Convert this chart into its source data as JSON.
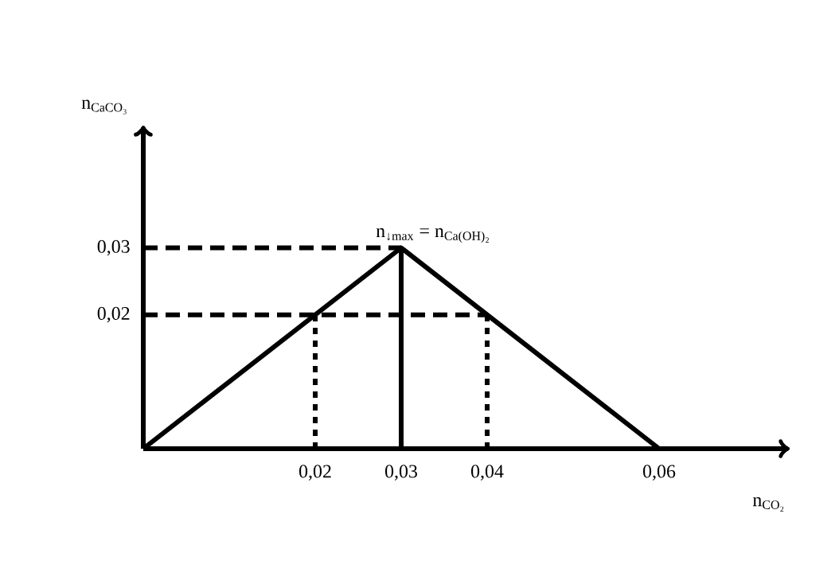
{
  "chart_data": {
    "type": "line",
    "xlabel": "n$_{CO₂}$",
    "ylabel": "n$_{CaCO₃}$",
    "x": [
      0,
      0.03,
      0.06
    ],
    "series": [
      {
        "color": "#000000",
        "line_style": "solid",
        "values": [
          0,
          0.03,
          0
        ]
      },
      {
        "color": "#000000",
        "line_style": "dashed",
        "x": [
          0,
          0.03
        ],
        "values": [
          0.03,
          0.03
        ]
      },
      {
        "color": "#000000",
        "line_style": "dashed",
        "x": [
          0,
          0.04
        ],
        "values": [
          0.02,
          0.02
        ]
      },
      {
        "color": "#000000",
        "line_style": "solid",
        "x": [
          0.03,
          0.03
        ],
        "values": [
          0,
          0.03
        ]
      },
      {
        "color": "#000000",
        "line_style": "dotted",
        "x": [
          0.02,
          0.02
        ],
        "values": [
          0,
          0.02
        ]
      },
      {
        "color": "#000000",
        "line_style": "dotted",
        "x": [
          0.04,
          0.04
        ],
        "values": [
          0,
          0.02
        ]
      }
    ],
    "xlim": [
      0,
      0.075
    ],
    "ylim": [
      0,
      0.048
    ],
    "xticks": [
      {
        "value": 0.02,
        "label": "0,02"
      },
      {
        "value": 0.03,
        "label": "0,03"
      },
      {
        "value": 0.04,
        "label": "0,04"
      },
      {
        "value": 0.06,
        "label": "0,06"
      }
    ],
    "yticks": [
      {
        "value": 0.02,
        "label": "0,02"
      },
      {
        "value": 0.03,
        "label": "0,03"
      }
    ],
    "annotations": [
      {
        "text": "n$_{↓max}$ = n$_{Ca(OH)₂}$",
        "x": 0.03,
        "y": 0.03
      }
    ]
  }
}
